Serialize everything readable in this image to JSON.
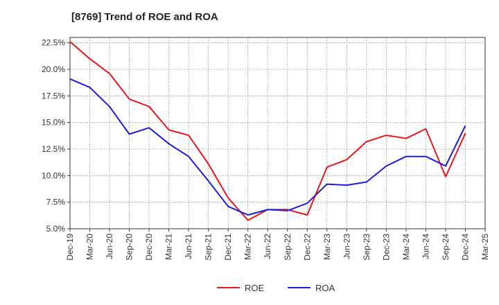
{
  "chart_data": {
    "type": "line",
    "title": "[8769]  Trend of ROE and ROA",
    "xlabel": "",
    "ylabel": "",
    "categories": [
      "Dec-19",
      "Mar-20",
      "Jun-20",
      "Sep-20",
      "Dec-20",
      "Mar-21",
      "Jun-21",
      "Sep-21",
      "Dec-21",
      "Mar-22",
      "Jun-22",
      "Sep-22",
      "Dec-22",
      "Mar-23",
      "Jun-23",
      "Sep-23",
      "Dec-23",
      "Mar-24",
      "Jun-24",
      "Sep-24",
      "Dec-24",
      "Mar-25"
    ],
    "ylim": [
      5.0,
      23.0
    ],
    "yticks": [
      5.0,
      7.5,
      10.0,
      12.5,
      15.0,
      17.5,
      20.0,
      22.5
    ],
    "ytick_labels": [
      "5.0%",
      "7.5%",
      "10.0%",
      "12.5%",
      "15.0%",
      "17.5%",
      "20.0%",
      "22.5%"
    ],
    "grid": true,
    "legend_position": "bottom",
    "series": [
      {
        "name": "ROE",
        "color": "#e8151d",
        "values": [
          22.6,
          21.0,
          19.6,
          17.2,
          16.5,
          14.3,
          13.8,
          11.1,
          7.9,
          5.8,
          6.8,
          6.8,
          6.3,
          10.8,
          11.5,
          13.2,
          13.8,
          13.5,
          14.4,
          9.9,
          14.0,
          null
        ]
      },
      {
        "name": "ROA",
        "color": "#1a1ae0",
        "values": [
          19.1,
          18.3,
          16.5,
          13.9,
          14.5,
          13.0,
          11.8,
          9.5,
          7.1,
          6.3,
          6.8,
          6.7,
          7.4,
          9.2,
          9.1,
          9.4,
          10.9,
          11.8,
          11.8,
          10.9,
          14.7,
          null
        ]
      }
    ]
  }
}
